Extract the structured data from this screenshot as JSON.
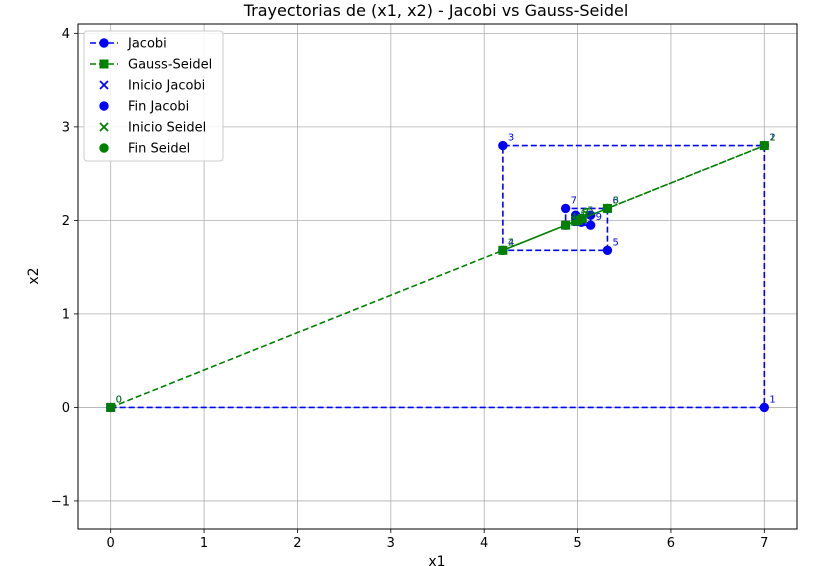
{
  "chart_data": {
    "type": "line",
    "title": "Trayectorias de (x1, x2) - Jacobi vs Gauss-Seidel",
    "xlabel": "x1",
    "ylabel": "x2",
    "xlim": [
      -0.35,
      7.35
    ],
    "ylim": [
      -1.3,
      4.1
    ],
    "xticks": [
      0,
      1,
      2,
      3,
      4,
      5,
      6,
      7
    ],
    "yticks": [
      -1,
      0,
      1,
      2,
      3,
      4
    ],
    "xtick_labels": [
      "0",
      "1",
      "2",
      "3",
      "4",
      "5",
      "6",
      "7"
    ],
    "ytick_labels": [
      "−1",
      "0",
      "1",
      "2",
      "3",
      "4"
    ],
    "grid": true,
    "legend_position": "top-left",
    "legend": [
      "Jacobi",
      "Gauss-Seidel",
      "Inicio Jacobi",
      "Fin Jacobi",
      "Inicio Seidel",
      "Fin Seidel"
    ],
    "series": [
      {
        "name": "Jacobi",
        "color": "#0000ff",
        "line": "dashed",
        "marker": "circle",
        "x": [
          0,
          7.0,
          7.0,
          4.2,
          4.2,
          5.32,
          5.32,
          4.872,
          4.872,
          5.14,
          5.14,
          4.98,
          5.04,
          5.0
        ],
        "y": [
          0,
          0,
          2.8,
          2.8,
          1.68,
          1.68,
          2.128,
          2.128,
          1.949,
          1.949,
          2.056,
          2.056,
          1.98,
          2.0
        ],
        "labels": [
          "0",
          "1",
          "2",
          "3",
          "4",
          "5",
          "6",
          "7",
          "8",
          "9",
          "",
          "",
          "",
          ""
        ]
      },
      {
        "name": "Gauss-Seidel",
        "color": "#008000",
        "line": "dashed",
        "marker": "square",
        "x": [
          0,
          7.0,
          4.2,
          5.32,
          4.872,
          5.051,
          4.979,
          5.008,
          4.997,
          5.0
        ],
        "y": [
          0,
          2.8,
          1.68,
          2.128,
          1.949,
          2.02,
          1.992,
          2.003,
          1.999,
          2.0
        ],
        "labels": [
          "0",
          "1",
          "2",
          "3",
          "4",
          "5",
          "6",
          "7",
          "8",
          "9"
        ]
      }
    ],
    "start_end_markers": [
      {
        "name": "Inicio Jacobi",
        "marker": "x",
        "color": "#0000ff",
        "x": 0,
        "y": 0
      },
      {
        "name": "Fin Jacobi",
        "marker": "circle",
        "color": "#0000ff",
        "x": 5.0,
        "y": 2.0
      },
      {
        "name": "Inicio Seidel",
        "marker": "x",
        "color": "#008000",
        "x": 0,
        "y": 0
      },
      {
        "name": "Fin Seidel",
        "marker": "circle",
        "color": "#008000",
        "x": 5.0,
        "y": 2.0
      }
    ]
  }
}
